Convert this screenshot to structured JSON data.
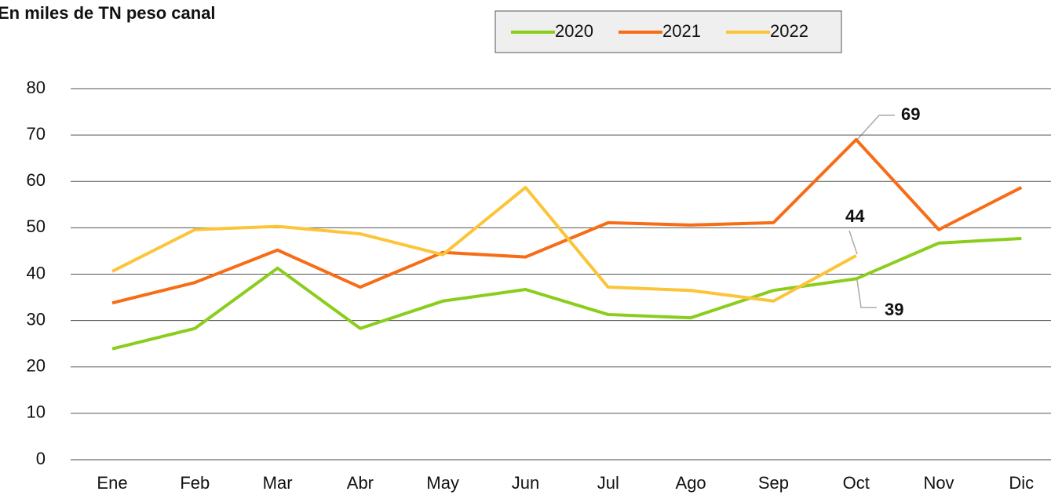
{
  "chart_data": {
    "type": "line",
    "title": "En miles de TN peso canal",
    "categories": [
      "Ene",
      "Feb",
      "Mar",
      "Abr",
      "May",
      "Jun",
      "Jul",
      "Ago",
      "Sep",
      "Oct",
      "Nov",
      "Dic"
    ],
    "series": [
      {
        "name": "2020",
        "color": "#8acd1c",
        "values": [
          23.9,
          28.3,
          41.3,
          28.3,
          34.2,
          36.7,
          31.3,
          30.6,
          36.5,
          39,
          46.7,
          47.7
        ]
      },
      {
        "name": "2021",
        "color": "#f76c15",
        "values": [
          33.8,
          38.2,
          45.2,
          37.2,
          44.7,
          43.7,
          51.1,
          50.6,
          51.1,
          69,
          49.6,
          58.7
        ]
      },
      {
        "name": "2022",
        "color": "#fcc438",
        "values": [
          40.6,
          49.6,
          50.3,
          48.7,
          44.2,
          58.7,
          37.2,
          36.5,
          34.2,
          44,
          null,
          null
        ]
      }
    ],
    "ylim": [
      0,
      80
    ],
    "yticks": [
      0,
      10,
      20,
      30,
      40,
      50,
      60,
      70,
      80
    ],
    "grid": true,
    "legend": "top"
  }
}
